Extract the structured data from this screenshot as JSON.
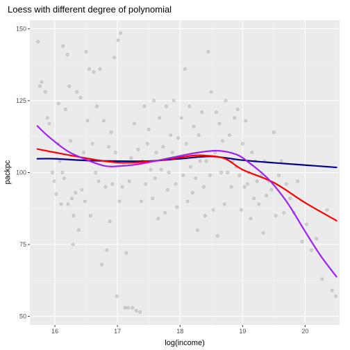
{
  "chart_data": {
    "type": "scatter",
    "title": "Loess with different degree of polynomial",
    "xlabel": "log(income)",
    "ylabel": "packpc",
    "xlim": [
      15.6,
      20.55
    ],
    "ylim": [
      47,
      153
    ],
    "x_ticks": [
      16,
      17,
      18,
      19,
      20
    ],
    "y_ticks": [
      50,
      75,
      100,
      125,
      150
    ],
    "x_tick_labels": [
      "16",
      "17",
      "18",
      "19",
      "20"
    ],
    "y_tick_labels": [
      "50",
      "75",
      "100",
      "125",
      "150"
    ],
    "grid": true,
    "legend": "none",
    "colors": {
      "panel": "#ebebeb",
      "grid_major": "#ffffff",
      "points": "#9a9a9a",
      "degree0": "#00008b",
      "degree1": "#ff0000",
      "degree2": "#a020f0"
    },
    "points": [
      [
        15.73,
        145.5
      ],
      [
        15.76,
        130
      ],
      [
        15.79,
        131.5
      ],
      [
        15.85,
        128
      ],
      [
        15.88,
        119
      ],
      [
        15.91,
        117
      ],
      [
        15.96,
        100
      ],
      [
        15.99,
        97
      ],
      [
        16.02,
        92.5
      ],
      [
        16.05,
        110
      ],
      [
        16.06,
        124
      ],
      [
        16.08,
        104
      ],
      [
        16.1,
        89
      ],
      [
        16.12,
        100
      ],
      [
        16.13,
        144
      ],
      [
        16.15,
        98
      ],
      [
        16.17,
        122
      ],
      [
        16.2,
        141
      ],
      [
        16.21,
        89
      ],
      [
        16.23,
        130
      ],
      [
        16.25,
        111
      ],
      [
        16.27,
        91
      ],
      [
        16.29,
        75
      ],
      [
        16.3,
        85
      ],
      [
        16.33,
        93
      ],
      [
        16.35,
        128
      ],
      [
        16.38,
        80
      ],
      [
        16.41,
        126
      ],
      [
        16.43,
        94
      ],
      [
        16.46,
        107
      ],
      [
        16.48,
        90
      ],
      [
        16.5,
        142
      ],
      [
        16.52,
        118
      ],
      [
        16.55,
        136
      ],
      [
        16.57,
        85
      ],
      [
        16.6,
        110
      ],
      [
        16.62,
        135
      ],
      [
        16.65,
        100
      ],
      [
        16.67,
        123
      ],
      [
        16.7,
        97
      ],
      [
        16.72,
        136
      ],
      [
        16.75,
        68
      ],
      [
        16.78,
        118
      ],
      [
        16.81,
        95
      ],
      [
        16.83,
        73
      ],
      [
        16.86,
        109
      ],
      [
        16.88,
        83
      ],
      [
        16.9,
        114
      ],
      [
        16.92,
        96
      ],
      [
        16.95,
        140
      ],
      [
        16.97,
        107
      ],
      [
        16.99,
        57
      ],
      [
        17.01,
        146
      ],
      [
        17.03,
        90
      ],
      [
        17.05,
        148.5
      ],
      [
        17.08,
        95
      ],
      [
        17.1,
        103
      ],
      [
        17.12,
        53
      ],
      [
        17.14,
        72
      ],
      [
        17.17,
        53
      ],
      [
        17.19,
        97
      ],
      [
        17.22,
        105
      ],
      [
        17.24,
        53
      ],
      [
        17.27,
        117
      ],
      [
        17.3,
        52
      ],
      [
        17.33,
        108
      ],
      [
        17.36,
        51.5
      ],
      [
        17.38,
        90
      ],
      [
        17.4,
        104
      ],
      [
        17.43,
        123
      ],
      [
        17.45,
        96
      ],
      [
        17.48,
        110
      ],
      [
        17.5,
        115
      ],
      [
        17.53,
        101
      ],
      [
        17.56,
        91
      ],
      [
        17.58,
        125
      ],
      [
        17.6,
        98
      ],
      [
        17.62,
        107
      ],
      [
        17.65,
        84
      ],
      [
        17.67,
        119
      ],
      [
        17.7,
        101
      ],
      [
        17.73,
        109
      ],
      [
        17.76,
        86
      ],
      [
        17.78,
        123
      ],
      [
        17.8,
        94
      ],
      [
        17.82,
        100
      ],
      [
        17.85,
        113
      ],
      [
        17.88,
        107
      ],
      [
        17.9,
        125
      ],
      [
        17.93,
        96
      ],
      [
        17.95,
        88
      ],
      [
        17.97,
        112
      ],
      [
        18.0,
        105
      ],
      [
        18.02,
        119
      ],
      [
        18.05,
        99
      ],
      [
        18.08,
        136
      ],
      [
        18.1,
        110
      ],
      [
        18.12,
        90
      ],
      [
        18.15,
        123
      ],
      [
        18.17,
        102
      ],
      [
        18.2,
        93
      ],
      [
        18.22,
        116
      ],
      [
        18.25,
        98
      ],
      [
        18.28,
        80
      ],
      [
        18.3,
        113
      ],
      [
        18.32,
        104
      ],
      [
        18.35,
        121
      ],
      [
        18.38,
        95
      ],
      [
        18.4,
        85
      ],
      [
        18.42,
        104
      ],
      [
        18.45,
        142
      ],
      [
        18.48,
        99
      ],
      [
        18.5,
        128
      ],
      [
        18.53,
        87
      ],
      [
        18.56,
        107
      ],
      [
        18.58,
        121
      ],
      [
        18.6,
        78
      ],
      [
        18.63,
        117
      ],
      [
        18.66,
        100
      ],
      [
        18.68,
        111
      ],
      [
        18.71,
        89
      ],
      [
        18.73,
        125
      ],
      [
        18.76,
        100
      ],
      [
        18.79,
        113
      ],
      [
        18.82,
        95
      ],
      [
        18.84,
        104
      ],
      [
        18.87,
        119
      ],
      [
        18.9,
        102
      ],
      [
        18.92,
        122
      ],
      [
        18.95,
        99
      ],
      [
        18.98,
        87
      ],
      [
        19.0,
        110
      ],
      [
        19.03,
        95
      ],
      [
        19.05,
        118
      ],
      [
        19.08,
        96
      ],
      [
        19.1,
        100
      ],
      [
        19.13,
        84
      ],
      [
        19.15,
        107
      ],
      [
        19.18,
        91
      ],
      [
        19.2,
        104
      ],
      [
        19.23,
        97
      ],
      [
        19.26,
        89
      ],
      [
        19.3,
        99
      ],
      [
        19.33,
        79
      ],
      [
        19.35,
        104
      ],
      [
        19.38,
        92
      ],
      [
        19.42,
        97
      ],
      [
        19.46,
        94
      ],
      [
        19.5,
        114
      ],
      [
        19.53,
        85
      ],
      [
        19.58,
        99
      ],
      [
        19.62,
        104
      ],
      [
        19.66,
        86
      ],
      [
        19.7,
        96
      ],
      [
        19.76,
        91
      ],
      [
        19.82,
        86
      ],
      [
        19.88,
        97
      ],
      [
        19.95,
        76
      ],
      [
        20.02,
        82
      ],
      [
        20.1,
        73
      ],
      [
        20.18,
        77
      ],
      [
        20.27,
        63
      ],
      [
        20.35,
        87
      ],
      [
        20.43,
        59
      ],
      [
        20.49,
        57
      ]
    ],
    "series": [
      {
        "x": [
          15.72,
          16.0,
          16.5,
          17.0,
          17.5,
          18.0,
          18.5,
          19.0,
          19.5,
          20.0,
          20.5
        ],
        "values": [
          104.8,
          104.8,
          104.2,
          104.0,
          104.0,
          104.8,
          105.6,
          104.3,
          103.4,
          102.6,
          101.8
        ]
      },
      {
        "x": [
          15.72,
          16.0,
          16.5,
          17.0,
          17.5,
          18.0,
          18.3,
          18.7,
          19.0,
          19.5,
          20.0,
          20.5
        ],
        "values": [
          108.2,
          107.0,
          105.0,
          103.5,
          103.8,
          105.3,
          106.0,
          105.0,
          101.0,
          96.5,
          89.5,
          83.3
        ]
      },
      {
        "x": [
          15.72,
          15.9,
          16.2,
          16.5,
          16.8,
          17.0,
          17.3,
          17.6,
          18.0,
          18.3,
          18.6,
          18.9,
          19.1,
          19.4,
          19.7,
          20.0,
          20.25,
          20.5
        ],
        "values": [
          116.2,
          112.5,
          107.5,
          104.5,
          102.3,
          102.2,
          102.8,
          104.0,
          105.8,
          107.0,
          107.6,
          106.3,
          103.5,
          98.0,
          90.0,
          79.5,
          71.0,
          63.8
        ]
      }
    ]
  }
}
